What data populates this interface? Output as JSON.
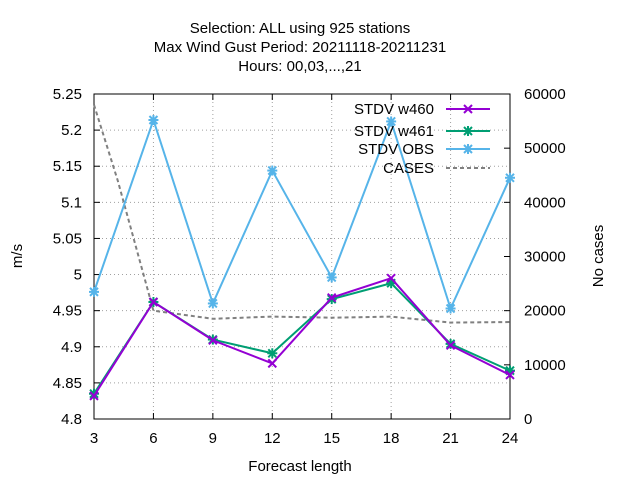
{
  "chart_data": {
    "type": "line",
    "title_lines": [
      "Selection: ALL using   925 stations",
      "Max Wind Gust   Period: 20211118-20211231",
      "Hours:  00,03,...,21"
    ],
    "xlabel": "Forecast length",
    "ylabel": "m/s",
    "y2label": "No cases",
    "x": [
      3,
      6,
      9,
      12,
      15,
      18,
      21,
      24
    ],
    "xlim": [
      3,
      24
    ],
    "ylim": [
      4.8,
      5.25
    ],
    "y2lim": [
      0,
      60000
    ],
    "x_ticks": [
      "3",
      "6",
      "9",
      "12",
      "15",
      "18",
      "21",
      "24"
    ],
    "y_ticks": [
      "4.8",
      "4.85",
      "4.9",
      "4.95",
      "5",
      "5.05",
      "5.1",
      "5.15",
      "5.2",
      "5.25"
    ],
    "y2_ticks": [
      "0",
      "10000",
      "20000",
      "30000",
      "40000",
      "50000",
      "60000"
    ],
    "grid": true,
    "legend_position": "top-right",
    "series": [
      {
        "name": "STDV w460",
        "color": "#9400d3",
        "marker": "cross",
        "axis": "y",
        "values": [
          4.832,
          4.962,
          4.909,
          4.877,
          4.968,
          4.995,
          4.902,
          4.861
        ]
      },
      {
        "name": "STDV w461",
        "color": "#009e73",
        "marker": "star",
        "axis": "y",
        "values": [
          4.835,
          4.962,
          4.91,
          4.891,
          4.966,
          4.988,
          4.904,
          4.867
        ]
      },
      {
        "name": "STDV OBS",
        "color": "#56b4e9",
        "marker": "star",
        "axis": "y",
        "values": [
          4.976,
          5.214,
          4.96,
          5.144,
          4.996,
          5.212,
          4.953,
          5.134
        ]
      },
      {
        "name": "CASES",
        "color": "#808080",
        "dash": true,
        "axis": "y2",
        "x": [
          3,
          4.2,
          6,
          9,
          12,
          15,
          18,
          21,
          24
        ],
        "values": [
          58000,
          44000,
          20000,
          18500,
          18900,
          18700,
          18900,
          17800,
          17900
        ]
      }
    ]
  }
}
